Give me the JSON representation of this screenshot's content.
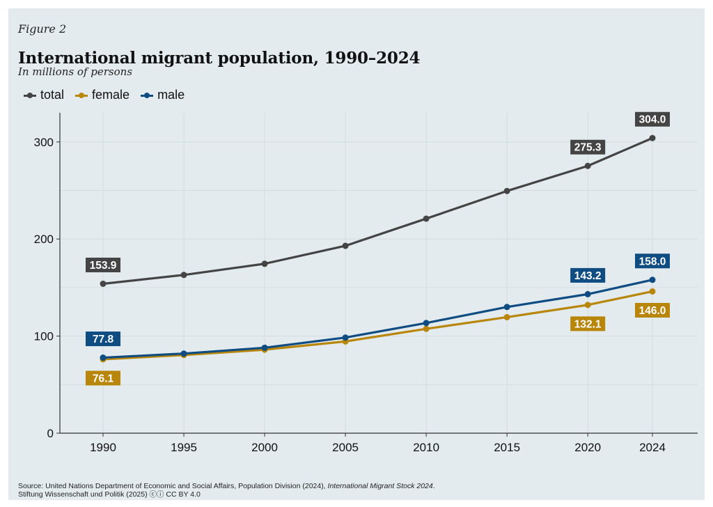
{
  "figure_label": "Figure 2",
  "title": "International migrant population, 1990–2024",
  "subtitle": "In millions of persons",
  "source": {
    "prefix": "Source: United Nations Department of Economic and Social Affairs, Population Division (2024), ",
    "publication": "International Migrant Stock 2024",
    "suffix": ".",
    "line2": "Stiftung Wissenschaft und Politik (2025) ⓒⓘ CC BY 4.0"
  },
  "chart_data": {
    "type": "line",
    "x": [
      1990,
      1995,
      2000,
      2005,
      2010,
      2015,
      2020,
      2024
    ],
    "ylim": [
      0,
      330
    ],
    "yticks": [
      0,
      100,
      200,
      300
    ],
    "grid": true,
    "legend_position": "top-left",
    "series": [
      {
        "name": "total",
        "color": "#444444",
        "values": [
          153.9,
          163,
          174.5,
          193,
          221,
          249.5,
          275.3,
          304.0
        ],
        "labels": [
          {
            "x": 1990,
            "text": "153.9",
            "pos": "above"
          },
          {
            "x": 2020,
            "text": "275.3",
            "pos": "above"
          },
          {
            "x": 2024,
            "text": "304.0",
            "pos": "above"
          }
        ]
      },
      {
        "name": "female",
        "color": "#b8860b",
        "values": [
          76.1,
          80.5,
          86,
          94.5,
          107.5,
          119.5,
          132.1,
          146.0
        ],
        "labels": [
          {
            "x": 1990,
            "text": "76.1",
            "pos": "below"
          },
          {
            "x": 2020,
            "text": "132.1",
            "pos": "below"
          },
          {
            "x": 2024,
            "text": "146.0",
            "pos": "below"
          }
        ]
      },
      {
        "name": "male",
        "color": "#0f4c81",
        "values": [
          77.8,
          82,
          88,
          98.5,
          113.5,
          130,
          143.2,
          158.0
        ],
        "labels": [
          {
            "x": 1990,
            "text": "77.8",
            "pos": "above"
          },
          {
            "x": 2020,
            "text": "143.2",
            "pos": "above"
          },
          {
            "x": 2024,
            "text": "158.0",
            "pos": "above"
          }
        ]
      }
    ]
  }
}
